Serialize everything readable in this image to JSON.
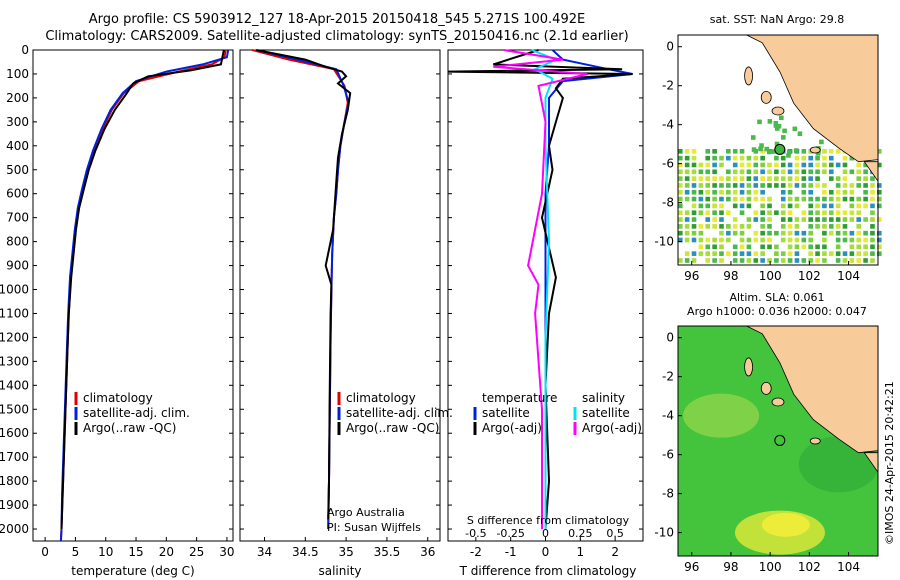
{
  "header": {
    "title1": "Argo profile: CS 5903912_127 18-Apr-2015 20150418_545 5.271S 100.492E",
    "title2": "Climatology: CARS2009. Satellite-adjusted climatology: synTS_20150416.nc (2.1d earlier)"
  },
  "colors": {
    "climatology": "#e00000",
    "satellite": "#0020e0",
    "argo": "#000000",
    "salinity_sat": "#00e0ff",
    "salinity_argo": "#ff00ff",
    "land": "#f7cc9a",
    "ocean_green": "#3cb53c"
  },
  "chart_data": [
    {
      "type": "line",
      "name": "temperature-profile",
      "xlabel": "temperature (deg C)",
      "xticks": [
        "0",
        "5",
        "10",
        "15",
        "20",
        "25",
        "30"
      ],
      "xlim": [
        -2,
        31
      ],
      "ylim": [
        2050,
        0
      ],
      "yticks": [
        "0",
        "100",
        "200",
        "300",
        "400",
        "500",
        "600",
        "700",
        "800",
        "900",
        "1000",
        "1100",
        "1200",
        "1300",
        "1400",
        "1500",
        "1600",
        "1700",
        "1800",
        "1900",
        "2000"
      ],
      "legend": [
        "climatology",
        "satellite-adj. clim.",
        "Argo(..raw -QC)"
      ],
      "series": [
        {
          "name": "climatology",
          "color": "#e00000",
          "x": [
            29.8,
            29.6,
            27.5,
            22,
            15.5,
            13,
            11,
            9.5,
            8,
            7,
            6.2,
            5.5,
            5,
            4.6,
            4.2,
            3.9,
            3.7,
            3.5,
            3.3,
            3.1,
            2.9,
            2.7,
            2.6
          ],
          "y": [
            0,
            30,
            60,
            90,
            130,
            180,
            250,
            330,
            420,
            500,
            580,
            660,
            750,
            850,
            950,
            1100,
            1250,
            1400,
            1550,
            1700,
            1850,
            2000,
            2050
          ]
        },
        {
          "name": "satellite-adj. clim.",
          "color": "#0020e0",
          "x": [
            30.2,
            30,
            26,
            20,
            15,
            12.8,
            10.8,
            9.3,
            7.9,
            6.9,
            6.1,
            5.4,
            4.9,
            4.5,
            4.1,
            3.8,
            3.6,
            3.4,
            3.2,
            3,
            2.8,
            2.7,
            2.6
          ],
          "y": [
            0,
            30,
            60,
            90,
            130,
            180,
            250,
            330,
            420,
            500,
            580,
            660,
            750,
            850,
            950,
            1100,
            1250,
            1400,
            1550,
            1700,
            1850,
            2000,
            2050
          ]
        },
        {
          "name": "Argo(..raw -QC)",
          "color": "#000000",
          "x": [
            29.5,
            29,
            24,
            17,
            14.5,
            13.5,
            11.5,
            9.8,
            8.3,
            7.2,
            6.4,
            5.6,
            5.1,
            4.7,
            4.3,
            3.9,
            3.7,
            3.5,
            3.3,
            3.1,
            2.9,
            2.7
          ],
          "y": [
            0,
            60,
            85,
            110,
            140,
            180,
            250,
            330,
            420,
            500,
            580,
            660,
            750,
            850,
            950,
            1100,
            1250,
            1400,
            1550,
            1700,
            1850,
            2000
          ]
        }
      ]
    },
    {
      "type": "line",
      "name": "salinity-profile",
      "xlabel": "salinity",
      "xticks": [
        "34",
        "34.5",
        "35",
        "35.5",
        "36"
      ],
      "xlim": [
        33.7,
        36.15
      ],
      "ylim": [
        2050,
        0
      ],
      "legend": [
        "climatology",
        "satellite-adj. clim.",
        "Argo(..raw -QC)"
      ],
      "note1": "Argo Australia",
      "note2": "PI: Susan Wijffels",
      "series": [
        {
          "name": "climatology",
          "color": "#e00000",
          "x": [
            33.85,
            34.3,
            34.85,
            34.98,
            35.02,
            34.98,
            34.93,
            34.9,
            34.88,
            34.85,
            34.83,
            34.82,
            34.81,
            34.8,
            34.79,
            34.78
          ],
          "y": [
            0,
            40,
            80,
            150,
            220,
            300,
            400,
            500,
            600,
            700,
            850,
            1000,
            1200,
            1500,
            1800,
            2000
          ]
        },
        {
          "name": "satellite-adj. clim.",
          "color": "#0020e0",
          "x": [
            33.9,
            34.4,
            34.88,
            34.97,
            35.03,
            34.98,
            34.93,
            34.9,
            34.88,
            34.85,
            34.83,
            34.82,
            34.81,
            34.8,
            34.79,
            34.78
          ],
          "y": [
            0,
            40,
            80,
            150,
            220,
            300,
            400,
            500,
            600,
            700,
            850,
            1000,
            1200,
            1500,
            1800,
            2000
          ]
        },
        {
          "name": "Argo(..raw -QC)",
          "color": "#000000",
          "x": [
            33.9,
            34.5,
            34.75,
            34.95,
            35.0,
            34.9,
            35.05,
            35.02,
            34.95,
            34.9,
            34.88,
            34.86,
            34.84,
            34.75,
            34.82,
            34.81,
            34.8,
            34.79,
            34.78
          ],
          "y": [
            0,
            40,
            70,
            90,
            110,
            140,
            180,
            250,
            350,
            450,
            550,
            650,
            750,
            900,
            980,
            1100,
            1400,
            1800,
            1960
          ]
        }
      ]
    },
    {
      "type": "line",
      "name": "difference-profile",
      "xlabel": "T difference from climatology",
      "xlabel_top": "S difference from climatology",
      "xticks": [
        "-2",
        "-1",
        "0",
        "1",
        "2"
      ],
      "xticks_top": [
        "-0.5",
        "-0.25",
        "0",
        "0.25",
        "0.5"
      ],
      "xlim": [
        -2.8,
        2.8
      ],
      "ylim": [
        2050,
        0
      ],
      "legend_left_title": "temperature",
      "legend_right_title": "salinity",
      "legend_left": [
        "satellite",
        "Argo(-adj)"
      ],
      "legend_right": [
        "satellite",
        "Argo(-adj)"
      ],
      "series": [
        {
          "name": "T satellite",
          "color": "#0020e0",
          "x": [
            0.2,
            0.5,
            1.8,
            2.5,
            0.5,
            0.1,
            0.1,
            0,
            0,
            0,
            0,
            0,
            0,
            0,
            0
          ],
          "y": [
            0,
            40,
            80,
            100,
            130,
            200,
            400,
            600,
            800,
            1000,
            1200,
            1400,
            1600,
            1800,
            2000
          ]
        },
        {
          "name": "T Argo(-adj)",
          "color": "#000000",
          "x": [
            -0.2,
            -1.5,
            2.2,
            -2.8,
            2.5,
            0.5,
            0.3,
            0.5,
            0.3,
            0.1,
            0.2,
            -0.1,
            0.3,
            0.1,
            0.0,
            0.1,
            0.0
          ],
          "y": [
            0,
            60,
            80,
            90,
            100,
            120,
            160,
            200,
            300,
            400,
            500,
            700,
            950,
            1100,
            1400,
            1800,
            2000
          ]
        },
        {
          "name": "S satellite",
          "color": "#00e0ff",
          "x": [
            -0.4,
            0.3,
            -0.3,
            0.2,
            0.0,
            0.0,
            0.1,
            0.0,
            0.0,
            0.0
          ],
          "y": [
            0,
            40,
            80,
            120,
            200,
            400,
            800,
            1200,
            1600,
            2000
          ]
        },
        {
          "name": "S Argo(-adj)",
          "color": "#ff00ff",
          "x": [
            -1.2,
            0.5,
            -1.5,
            1.2,
            -0.2,
            0.0,
            -0.1,
            -0.5,
            -0.2,
            -0.3,
            -0.1,
            -0.1
          ],
          "y": [
            0,
            40,
            70,
            100,
            150,
            300,
            600,
            900,
            980,
            1100,
            1500,
            2000
          ]
        }
      ]
    },
    {
      "type": "heatmap",
      "name": "sst-map",
      "title": "sat. SST: NaN Argo: 29.8",
      "xticks": [
        "96",
        "98",
        "100",
        "102",
        "104"
      ],
      "yticks": [
        "0",
        "-2",
        "-4",
        "-6",
        "-8",
        "-10"
      ],
      "xlim": [
        95.3,
        105.5
      ],
      "ylim": [
        -11.2,
        0.6
      ],
      "argo_position": {
        "lon": 100.492,
        "lat": -5.271
      }
    },
    {
      "type": "heatmap",
      "name": "sla-map",
      "title1": "Altim. SLA: 0.061",
      "title2": "Argo h1000: 0.036 h2000: 0.047",
      "xticks": [
        "96",
        "98",
        "100",
        "102",
        "104"
      ],
      "yticks": [
        "0",
        "-2",
        "-4",
        "-6",
        "-8",
        "-10"
      ],
      "xlim": [
        95.3,
        105.5
      ],
      "ylim": [
        -11.2,
        0.6
      ],
      "argo_position": {
        "lon": 100.492,
        "lat": -5.271
      }
    }
  ],
  "footer": {
    "credit": "©IMOS 24-Apr-2015 20:42:21"
  }
}
